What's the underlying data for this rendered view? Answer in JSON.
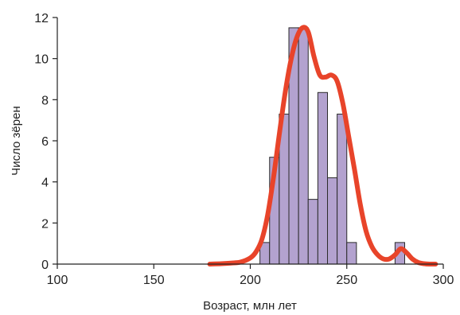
{
  "chart_data": {
    "type": "bar",
    "title": "",
    "xlabel": "Возраст, млн лет",
    "ylabel": "Число зёрен",
    "xlim": [
      100,
      300
    ],
    "ylim": [
      0,
      12
    ],
    "x_ticks": [
      "100",
      "150",
      "200",
      "250",
      "300"
    ],
    "y_ticks": [
      "0",
      "2",
      "4",
      "6",
      "8",
      "10",
      "12"
    ],
    "grid": false,
    "bin_width": 5,
    "bins": [
      {
        "start": 205,
        "end": 210,
        "value": 1.05
      },
      {
        "start": 210,
        "end": 215,
        "value": 5.2
      },
      {
        "start": 215,
        "end": 220,
        "value": 7.3
      },
      {
        "start": 220,
        "end": 225,
        "value": 11.5
      },
      {
        "start": 225,
        "end": 230,
        "value": 11.5
      },
      {
        "start": 230,
        "end": 235,
        "value": 3.15
      },
      {
        "start": 235,
        "end": 240,
        "value": 8.35
      },
      {
        "start": 240,
        "end": 245,
        "value": 4.2
      },
      {
        "start": 245,
        "end": 250,
        "value": 7.3
      },
      {
        "start": 250,
        "end": 255,
        "value": 1.05
      },
      {
        "start": 275,
        "end": 280,
        "value": 1.05
      }
    ],
    "density_curve": {
      "x": [
        179,
        185,
        190,
        195,
        200,
        203,
        206,
        209,
        212,
        215,
        218,
        221,
        224,
        227,
        230,
        233,
        236,
        239,
        242,
        245,
        248,
        251,
        254,
        257,
        260,
        263,
        266,
        269,
        272,
        275,
        278,
        281,
        284,
        287,
        290,
        293,
        296
      ],
      "y": [
        0.0,
        0.02,
        0.05,
        0.1,
        0.3,
        0.6,
        1.2,
        2.4,
        4.2,
        6.3,
        8.3,
        9.9,
        11.0,
        11.5,
        11.3,
        10.1,
        9.2,
        9.1,
        9.2,
        8.9,
        7.8,
        6.2,
        4.6,
        2.9,
        1.6,
        0.85,
        0.45,
        0.25,
        0.25,
        0.45,
        0.75,
        0.55,
        0.25,
        0.08,
        0.02,
        0.0,
        0.0
      ]
    },
    "colors": {
      "bar_fill": "#b3a2cf",
      "bar_stroke": "#2b2b2b",
      "curve": "#e8442a",
      "axis": "#222222"
    }
  }
}
